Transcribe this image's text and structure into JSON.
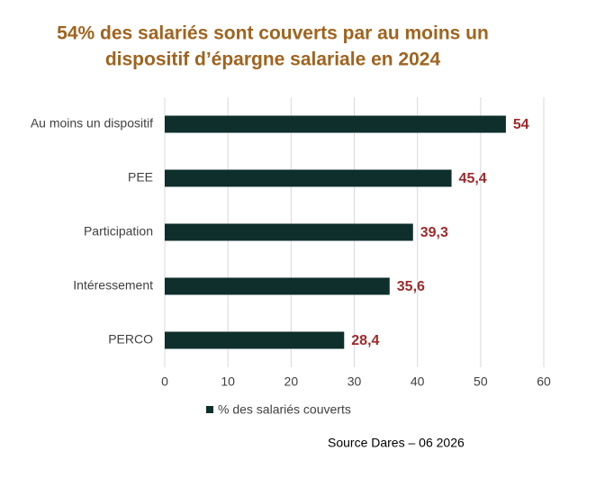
{
  "chart_data": {
    "type": "bar",
    "orientation": "horizontal",
    "title": [
      "54% des salariés sont couverts par au moins un",
      "dispositif d’épargne salariale en 2024"
    ],
    "categories": [
      "Au moins un dispositif",
      "PEE",
      "Participation",
      "Intéressement",
      "PERCO"
    ],
    "series": [
      {
        "name": "% des salariés couverts",
        "color": "#0e2f2b",
        "values": [
          54,
          45.4,
          39.3,
          35.6,
          28.4
        ],
        "value_labels": [
          "54",
          "45,4",
          "39,3",
          "35,6",
          "28,4"
        ]
      }
    ],
    "xlim": [
      0,
      60
    ],
    "xticks": [
      0,
      10,
      20,
      30,
      40,
      50,
      60
    ],
    "grid": true,
    "legend": "bottom",
    "source": "Source Dares – 06 2026"
  }
}
